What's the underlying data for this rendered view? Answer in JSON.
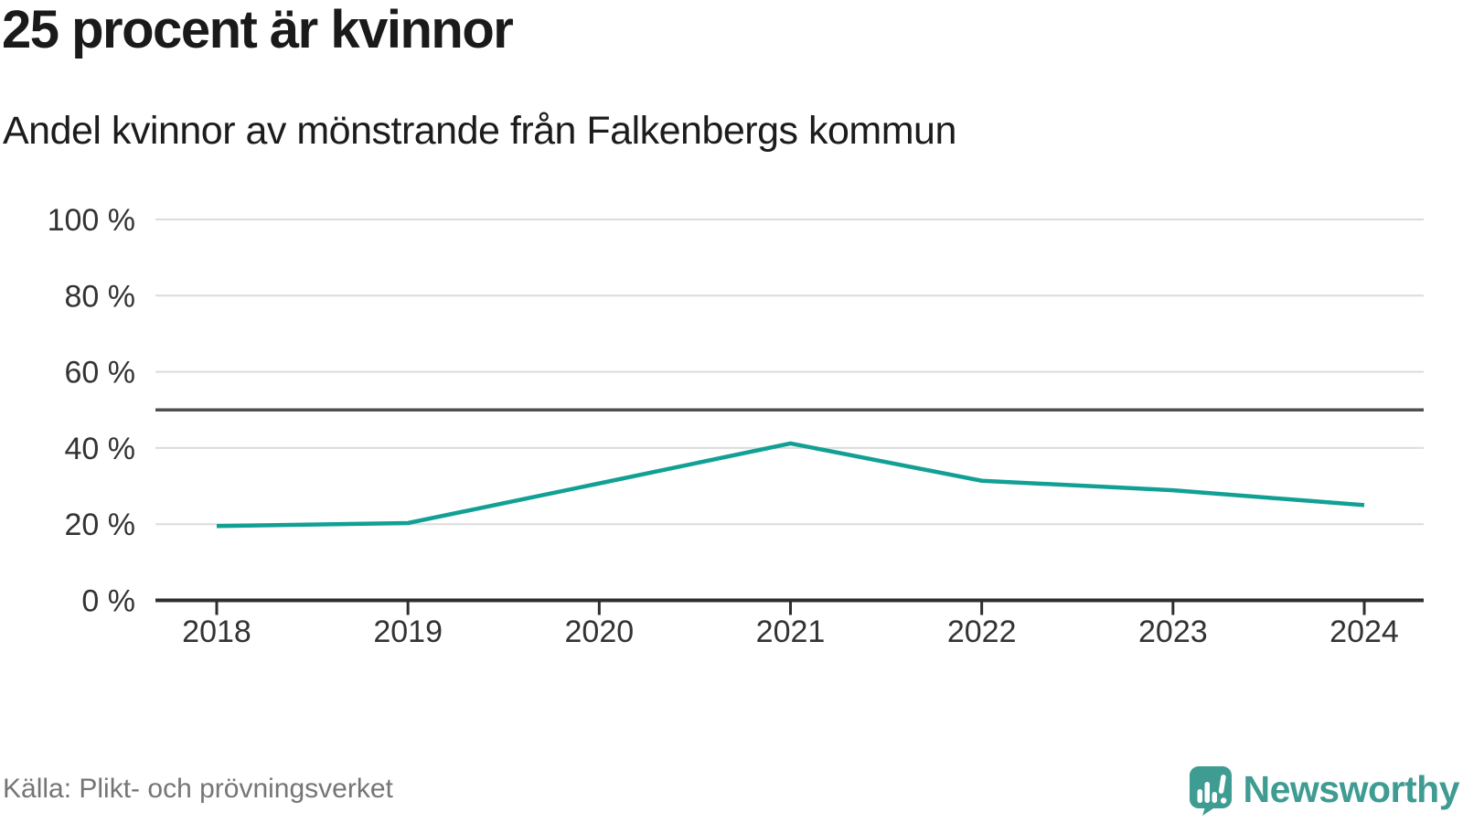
{
  "header": {
    "title": "25 procent är kvinnor",
    "subtitle": "Andel kvinnor av mönstrande från Falkenbergs kommun"
  },
  "chart_data": {
    "type": "line",
    "title": "25 procent är kvinnor",
    "subtitle": "Andel kvinnor av mönstrande från Falkenbergs kommun",
    "x": [
      "2018",
      "2019",
      "2020",
      "2021",
      "2022",
      "2023",
      "2024"
    ],
    "values": [
      19.5,
      20.3,
      30.7,
      41.2,
      31.4,
      28.9,
      25
    ],
    "unit": "%",
    "xlabel": "",
    "ylabel": "",
    "ylim": [
      0,
      100
    ],
    "y_ticks": [
      0,
      20,
      40,
      60,
      80,
      100
    ],
    "y_tick_suffix": " %",
    "reference_line": 50,
    "grid": true,
    "legend": false
  },
  "footer": {
    "source": "Källa: Plikt- och prövningsverket",
    "brand": "Newsworthy"
  },
  "colors": {
    "accent": "#12a095",
    "grid": "#dcdcdc",
    "reference": "#4f4f4f",
    "axis": "#2e2e2e",
    "axis_text": "#333333",
    "source_text": "#757575",
    "brand": "#3f9c92",
    "title_text": "#1a1a1a"
  }
}
